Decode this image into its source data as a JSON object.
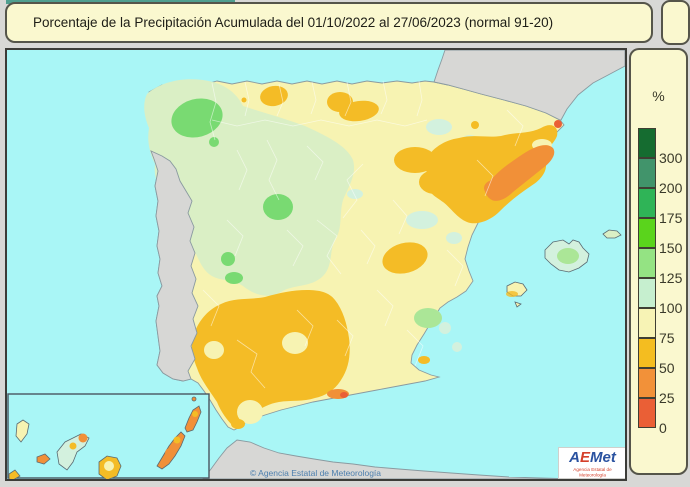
{
  "title": {
    "text": "Porcentaje de la Precipitación Acumulada del 01/10/2022 al 27/06/2023 (normal 91-20)"
  },
  "legend": {
    "unit": "%",
    "entries": [
      {
        "label": "300",
        "color": "#156c30"
      },
      {
        "label": "200",
        "color": "#41946b"
      },
      {
        "label": "175",
        "color": "#2fb457"
      },
      {
        "label": "150",
        "color": "#5ad41c"
      },
      {
        "label": "125",
        "color": "#94e383"
      },
      {
        "label": "100",
        "color": "#c6efcf"
      },
      {
        "label": "75",
        "color": "#f7f3b5"
      },
      {
        "label": "50",
        "color": "#f4bd20"
      },
      {
        "label": "25",
        "color": "#f29139"
      },
      {
        "label": "0",
        "color": "#ea5f36"
      }
    ]
  },
  "map": {
    "attribution": "© Agencia Estatal de Meteorología",
    "logo": {
      "a": "A",
      "e": "E",
      "met": "Met",
      "sub": "Agencia Estatal de Meteorología"
    }
  },
  "colors": {
    "sea": "#a9f6f6",
    "land_grey": "#d7d7d5",
    "base_yellow": "#f7f3b2",
    "pale_green": "#daefc5",
    "green": "#79da72",
    "light_green": "#abe697",
    "mint": "#d3f1de",
    "gold": "#f4bc26",
    "orange": "#f19038",
    "red_orange": "#ea5f36",
    "panel_bg": "#faf8cf",
    "teal_strip": "#4f9f8f",
    "logo_bg": "#ffffff"
  }
}
